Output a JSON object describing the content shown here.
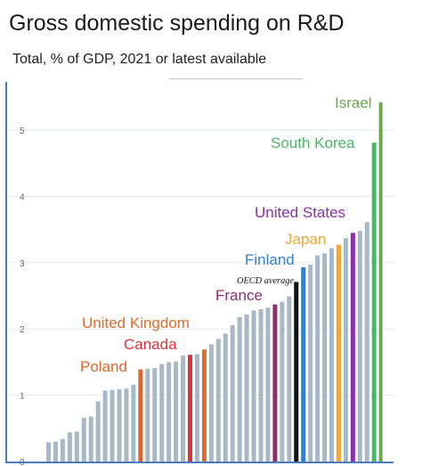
{
  "title": "Gross domestic spending on R&D",
  "subtitle": "Total, % of GDP, 2021 or latest available",
  "colors": {
    "default_bar": "#a9b8c6",
    "israel": "#6aa84f",
    "south_korea": "#4fb36a",
    "united_states": "#8b2fa8",
    "japan": "#f0a63a",
    "finland": "#2f7fd6",
    "oecd_average": "#111111",
    "france": "#8b2f6a",
    "united_kingdom": "#e06a2a",
    "canada": "#e0303a",
    "poland": "#e0652a",
    "gridline": "#e3e8ee"
  },
  "chart_data": {
    "type": "bar",
    "title": "Gross domestic spending on R&D",
    "subtitle": "Total, % of GDP, 2021 or latest available",
    "xlabel": "",
    "ylabel": "",
    "ylim": [
      0,
      5.5
    ],
    "yticks": [
      0,
      1,
      2,
      3,
      4,
      5
    ],
    "grid": true,
    "values": [
      0.29,
      0.3,
      0.34,
      0.44,
      0.45,
      0.66,
      0.68,
      0.91,
      1.07,
      1.08,
      1.09,
      1.1,
      1.16,
      1.39,
      1.4,
      1.41,
      1.47,
      1.5,
      1.51,
      1.6,
      1.61,
      1.62,
      1.69,
      1.77,
      1.85,
      1.93,
      2.06,
      2.18,
      2.22,
      2.28,
      2.3,
      2.32,
      2.37,
      2.41,
      2.49,
      2.71,
      2.93,
      2.97,
      3.11,
      3.14,
      3.22,
      3.27,
      3.37,
      3.45,
      3.48,
      3.61,
      4.81,
      5.42
    ],
    "labeled_bars": [
      {
        "label": "Poland",
        "index": 13,
        "color_key": "poland"
      },
      {
        "label": "Canada",
        "index": 20,
        "color_key": "canada"
      },
      {
        "label": "United Kingdom",
        "index": 22,
        "color_key": "united_kingdom"
      },
      {
        "label": "France",
        "index": 32,
        "color_key": "france"
      },
      {
        "label": "OECD average",
        "index": 35,
        "color_key": "oecd_average"
      },
      {
        "label": "Finland",
        "index": 36,
        "color_key": "finland"
      },
      {
        "label": "Japan",
        "index": 41,
        "color_key": "japan"
      },
      {
        "label": "United States",
        "index": 43,
        "color_key": "united_states"
      },
      {
        "label": "South Korea",
        "index": 46,
        "color_key": "south_korea"
      },
      {
        "label": "Israel",
        "index": 47,
        "color_key": "israel"
      }
    ]
  }
}
